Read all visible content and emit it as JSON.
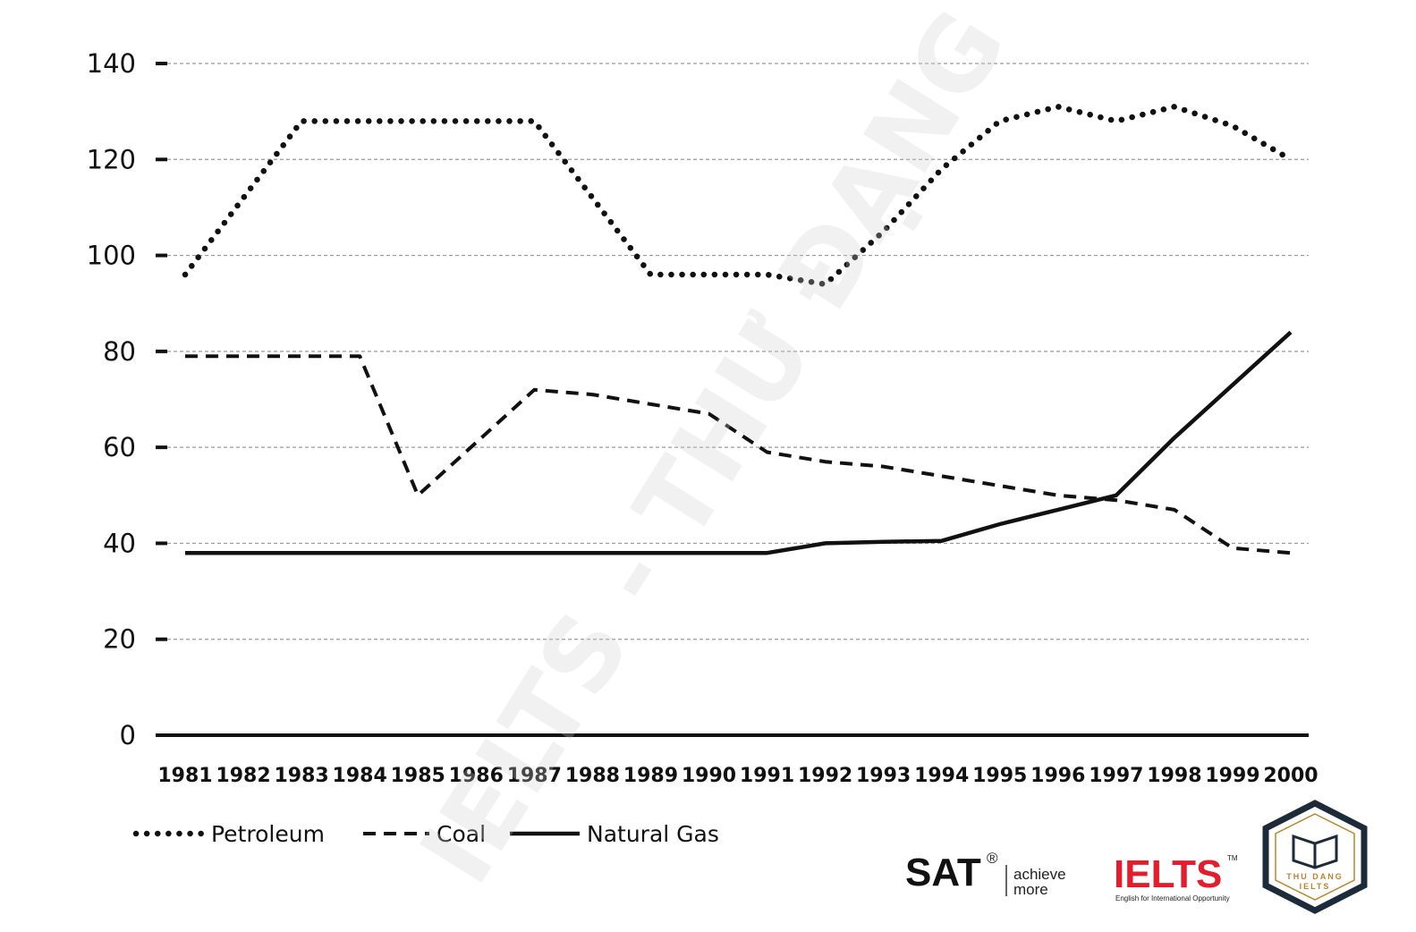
{
  "chart_data": {
    "type": "line",
    "title": "",
    "xlabel": "",
    "ylabel": "",
    "ylim": [
      0,
      140
    ],
    "yticks": [
      0,
      20,
      40,
      60,
      80,
      100,
      120,
      140
    ],
    "grid": true,
    "legend_position": "bottom-left",
    "x": [
      "1981",
      "1982",
      "1983",
      "1984",
      "1985",
      "1986",
      "1987",
      "1988",
      "1989",
      "1990",
      "1991",
      "1992",
      "1993",
      "1994",
      "1995",
      "1996",
      "1997",
      "1998",
      "1999",
      "2000"
    ],
    "series": [
      {
        "name": "Petroleum",
        "style": "dotted",
        "color": "#111111",
        "values": [
          96,
          112,
          128,
          128,
          128,
          128,
          128,
          112,
          96,
          96,
          96,
          94,
          105,
          118,
          128,
          131,
          128,
          131,
          127,
          120
        ]
      },
      {
        "name": "Coal",
        "style": "dashed",
        "color": "#111111",
        "values": [
          79,
          79,
          79,
          79,
          50,
          61,
          72,
          71,
          69,
          67,
          59,
          57,
          56,
          54,
          52,
          50,
          49,
          47,
          39,
          38
        ]
      },
      {
        "name": "Natural Gas",
        "style": "solid",
        "color": "#111111",
        "values": [
          38,
          38,
          38,
          38,
          38,
          38,
          38,
          38,
          38,
          38,
          38,
          40,
          40.3,
          40.5,
          44,
          47,
          50,
          62,
          73,
          84
        ]
      }
    ]
  },
  "watermark": {
    "text": "IELTS - THƯ ĐẠNG"
  },
  "logos": {
    "sat_name": "SAT",
    "sat_reg": "®",
    "sat_tagline_1": "achieve",
    "sat_tagline_2": "more",
    "ielts_name": "IELTS",
    "ielts_tm": "TM",
    "ielts_tagline": "English for International Opportunity",
    "badge_name": "THU DANG",
    "badge_sub": "IELTS"
  }
}
